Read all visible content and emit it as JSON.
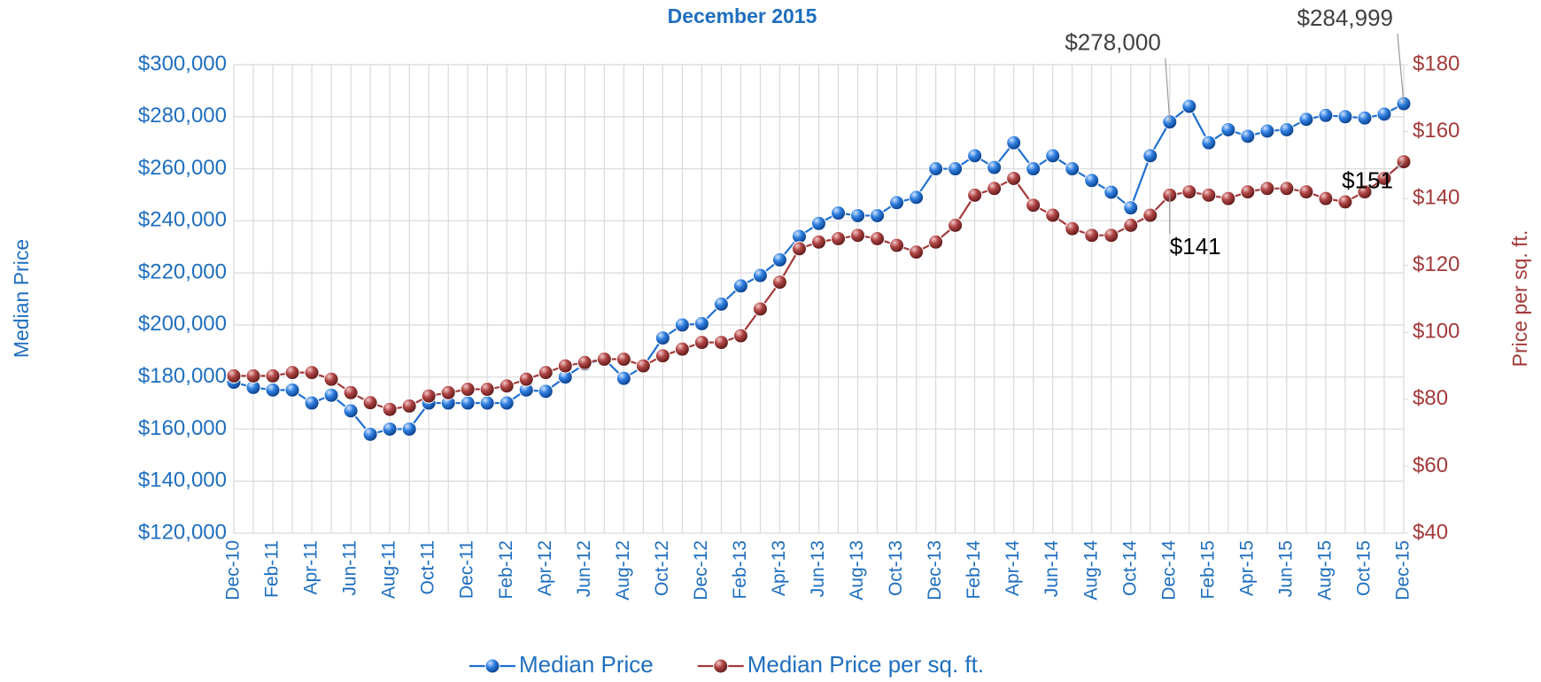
{
  "chart_data": {
    "type": "line",
    "title": "December 2015",
    "y_label": "Median Price",
    "y2_label": "Price per sq. ft.",
    "categories": [
      "Dec-10",
      null,
      "Feb-11",
      null,
      "Apr-11",
      null,
      "Jun-11",
      null,
      "Aug-11",
      null,
      "Oct-11",
      null,
      "Dec-11",
      null,
      "Feb-12",
      null,
      "Apr-12",
      null,
      "Jun-12",
      null,
      "Aug-12",
      null,
      "Oct-12",
      null,
      "Dec-12",
      null,
      "Feb-13",
      null,
      "Apr-13",
      null,
      "Jun-13",
      null,
      "Aug-13",
      null,
      "Oct-13",
      null,
      "Dec-13",
      null,
      "Feb-14",
      null,
      "Apr-14",
      null,
      "Jun-14",
      null,
      "Aug-14",
      null,
      "Oct-14",
      null,
      "Dec-14",
      null,
      "Feb-15",
      null,
      "Apr-15",
      null,
      "Jun-15",
      null,
      "Aug-15",
      null,
      "Oct-15",
      null,
      "Dec-15"
    ],
    "series": [
      {
        "name": "Median Price",
        "color": "#1f6fd0",
        "values": [
          178000,
          176000,
          175000,
          175000,
          170000,
          173000,
          167000,
          158000,
          160000,
          160000,
          170000,
          170000,
          170000,
          170000,
          170000,
          175000,
          174500,
          180000,
          185000,
          187000,
          179500,
          184000,
          195000,
          200000,
          200500,
          208000,
          215000,
          219000,
          225000,
          234000,
          239000,
          243000,
          242000,
          242000,
          247000,
          249000,
          260000,
          260000,
          265000,
          260500,
          270000,
          260000,
          265000,
          260000,
          255500,
          251000,
          245000,
          265000,
          278000,
          284000,
          270000,
          275000,
          272500,
          274500,
          275000,
          279000,
          280500,
          280000,
          279500,
          281000,
          284999
        ],
        "value_labels": [
          null,
          null,
          null,
          null,
          null,
          null,
          null,
          null,
          null,
          null,
          null,
          null,
          null,
          null,
          null,
          null,
          null,
          null,
          null,
          null,
          null,
          null,
          null,
          null,
          null,
          null,
          null,
          null,
          null,
          null,
          null,
          null,
          null,
          null,
          null,
          null,
          null,
          null,
          null,
          null,
          null,
          null,
          null,
          null,
          null,
          null,
          null,
          null,
          "$278,000",
          null,
          null,
          null,
          null,
          null,
          null,
          null,
          null,
          null,
          null,
          null,
          "$284,999"
        ]
      },
      {
        "name": "Median Price per sq. ft.",
        "color": "#a33a3a",
        "axis": "y2",
        "values": [
          87,
          87,
          87,
          88,
          88,
          86,
          82,
          79,
          77,
          78,
          81,
          82,
          83,
          83,
          84,
          86,
          88,
          90,
          91,
          92,
          92,
          90,
          93,
          95,
          97,
          97,
          99,
          107,
          115,
          125,
          127,
          128,
          129,
          128,
          126,
          124,
          127,
          132,
          141,
          143,
          146,
          138,
          135,
          131,
          129,
          129,
          132,
          135,
          141,
          142,
          141,
          140,
          142,
          143,
          143,
          142,
          140,
          139,
          142,
          146,
          151
        ],
        "value_labels": [
          null,
          null,
          null,
          null,
          null,
          null,
          null,
          null,
          null,
          null,
          null,
          null,
          null,
          null,
          null,
          null,
          null,
          null,
          null,
          null,
          null,
          null,
          null,
          null,
          null,
          null,
          null,
          null,
          null,
          null,
          null,
          null,
          null,
          null,
          null,
          null,
          null,
          null,
          null,
          null,
          null,
          null,
          null,
          null,
          null,
          null,
          null,
          null,
          "$141",
          null,
          null,
          null,
          null,
          null,
          null,
          null,
          null,
          null,
          null,
          null,
          "$151"
        ]
      }
    ],
    "ylim": [
      120000,
      300000
    ],
    "yticks": [
      {
        "value": 120000,
        "label": "$120,000"
      },
      {
        "value": 140000,
        "label": "$140,000"
      },
      {
        "value": 160000,
        "label": "$160,000"
      },
      {
        "value": 180000,
        "label": "$180,000"
      },
      {
        "value": 200000,
        "label": "$200,000"
      },
      {
        "value": 220000,
        "label": "$220,000"
      },
      {
        "value": 240000,
        "label": "$240,000"
      },
      {
        "value": 260000,
        "label": "$260,000"
      },
      {
        "value": 280000,
        "label": "$280,000"
      },
      {
        "value": 300000,
        "label": "$300,000"
      }
    ],
    "y2lim": [
      40,
      180
    ],
    "y2ticks": [
      {
        "value": 40,
        "label": "$40"
      },
      {
        "value": 60,
        "label": "$60"
      },
      {
        "value": 80,
        "label": "$80"
      },
      {
        "value": 100,
        "label": "$100"
      },
      {
        "value": 120,
        "label": "$120"
      },
      {
        "value": 140,
        "label": "$140"
      },
      {
        "value": 160,
        "label": "$160"
      },
      {
        "value": 180,
        "label": "$180"
      }
    ],
    "grid": true
  }
}
